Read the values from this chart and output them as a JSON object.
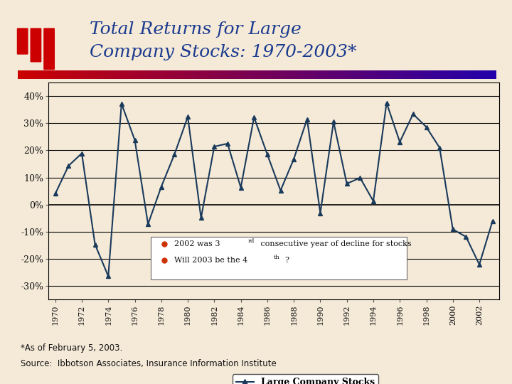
{
  "years": [
    1970,
    1971,
    1972,
    1973,
    1974,
    1975,
    1976,
    1977,
    1978,
    1979,
    1980,
    1981,
    1982,
    1983,
    1984,
    1985,
    1986,
    1987,
    1988,
    1989,
    1990,
    1991,
    1992,
    1993,
    1994,
    1995,
    1996,
    1997,
    1998,
    1999,
    2000,
    2001,
    2002,
    2003
  ],
  "values": [
    4.0,
    14.3,
    18.9,
    -14.7,
    -26.4,
    37.2,
    23.8,
    -7.2,
    6.6,
    18.6,
    32.4,
    -4.9,
    21.4,
    22.5,
    6.3,
    32.2,
    18.5,
    5.2,
    16.8,
    31.5,
    -3.1,
    30.5,
    7.7,
    9.9,
    1.3,
    37.5,
    23.1,
    33.4,
    28.6,
    21.0,
    -9.1,
    -11.9,
    -22.1,
    -6.0
  ],
  "line_color": "#1a3a5c",
  "marker": "^",
  "marker_size": 5,
  "title_line1": "Total Returns for Large",
  "title_line2": "Company Stocks: 1970-2003*",
  "title_color": "#1a3a8f",
  "title_fontsize": 18,
  "bg_color": "#f5ead8",
  "plot_bg_color": "#f5ead8",
  "yticks": [
    -30,
    -20,
    -10,
    0,
    10,
    20,
    30,
    40
  ],
  "ylim": [
    -35,
    45
  ],
  "xlim": [
    1969.5,
    2003.5
  ],
  "legend_label": "Large Company Stocks",
  "footer1": "*As of February 5, 2003.",
  "footer2": "Source:  Ibbotson Associates, Insurance Information Institute",
  "grid_color": "#000000",
  "annotation_dot_color": "#cc3300",
  "ann1_text": "2002 was 3",
  "ann1_sup": "rd",
  "ann1_rest": " consecutive year of decline for stocks",
  "ann2_text": "Will 2003 be the 4",
  "ann2_sup": "th",
  "ann2_rest": "?"
}
